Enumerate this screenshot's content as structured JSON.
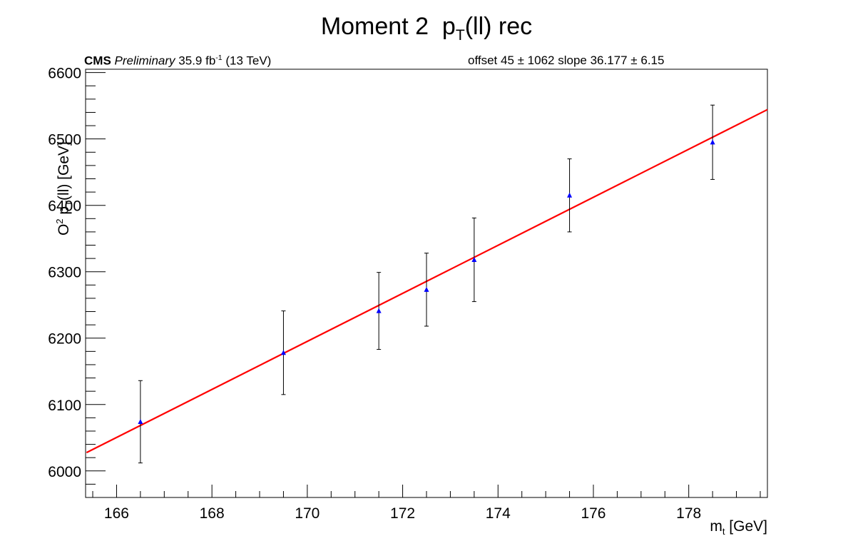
{
  "title": {
    "main": "Moment 2",
    "sym": "p",
    "sub": "T",
    "rest": "(ll) rec"
  },
  "label_left": {
    "bold": "CMS",
    "italic": "Preliminary",
    "lumi": "35.9 fb",
    "lumi_sup": "-1",
    "energy": "(13 TeV)"
  },
  "label_right": "offset 45 ± 1062   slope 36.177 ± 6.15",
  "xlabel": {
    "main": "m",
    "sub": "t",
    "unit": "[GeV]"
  },
  "ylabel": {
    "o": "O",
    "o_sup": "2",
    "p": "p",
    "p_sub": "T",
    "rest": "(ll) [GeV]"
  },
  "chart_data": {
    "type": "scatter",
    "xlim": [
      165.35,
      179.65
    ],
    "ylim": [
      5960,
      6605
    ],
    "x_ticks": [
      166,
      168,
      170,
      172,
      174,
      176,
      178
    ],
    "y_ticks": [
      6000,
      6100,
      6200,
      6300,
      6400,
      6500,
      6600
    ],
    "points": {
      "x": [
        166.5,
        169.5,
        171.5,
        172.5,
        173.5,
        175.5,
        178.5
      ],
      "y": [
        6074,
        6178,
        6241,
        6273,
        6318,
        6415,
        6495
      ],
      "err": [
        62,
        63,
        58,
        55,
        63,
        55,
        56
      ],
      "color": "#0000ff"
    },
    "fit": {
      "offset": 45,
      "slope": 36.177,
      "color": "#ff0000"
    },
    "grid": false,
    "legend": "none"
  }
}
